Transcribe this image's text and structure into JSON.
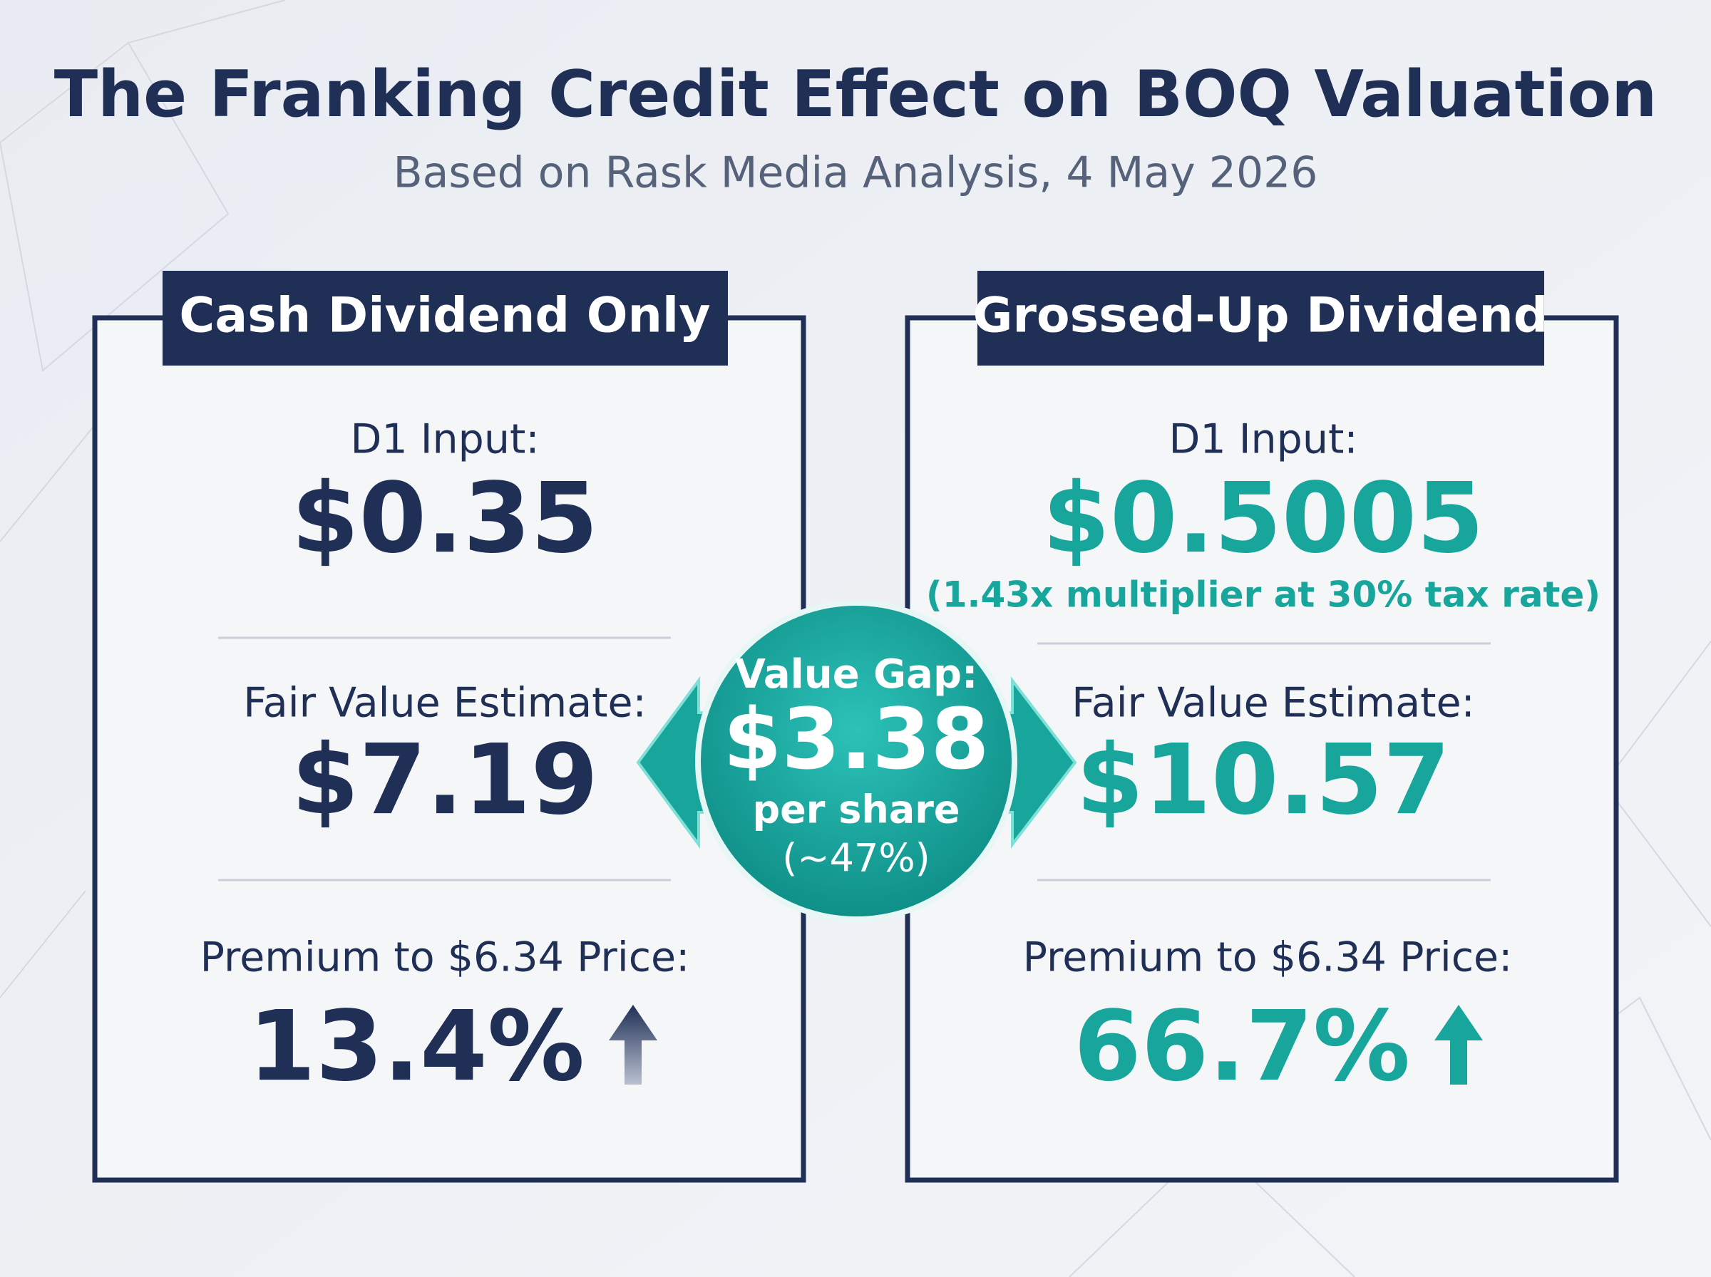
{
  "header": {
    "title": "The Franking Credit Effect on BOQ Valuation",
    "subtitle": "Based on Rask Media Analysis, 4 May 2026"
  },
  "panels": [
    {
      "heading": "Cash Dividend Only",
      "items": [
        {
          "label": "D1 Input:",
          "value": "$0.35"
        },
        {
          "label": "Fair Value Estimate:",
          "value": "$7.19"
        },
        {
          "label": "Premium to $6.34 Price:",
          "value": "13.4%"
        }
      ]
    },
    {
      "heading": "Grossed-Up Dividend",
      "items": [
        {
          "label": "D1 Input:",
          "value": "$0.5005",
          "note": "(1.43x multiplier at 30% tax rate)"
        },
        {
          "label": "Fair Value Estimate:",
          "value": "$10.57"
        },
        {
          "label": "Premium to $6.34 Price:",
          "value": "66.7%"
        }
      ]
    }
  ],
  "value_gap": {
    "label": "Value Gap:",
    "value": "$3.38",
    "unit": "per share",
    "share": "(~47%)"
  }
}
